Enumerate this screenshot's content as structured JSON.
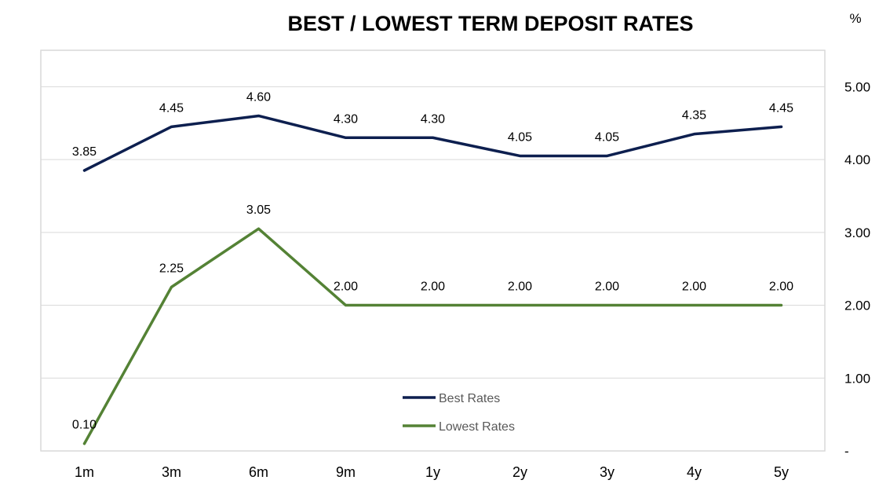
{
  "chart_data": {
    "type": "line",
    "title": "BEST / LOWEST TERM DEPOSIT RATES",
    "unit": "%",
    "categories": [
      "1m",
      "3m",
      "6m",
      "9m",
      "1y",
      "2y",
      "3y",
      "4y",
      "5y"
    ],
    "series": [
      {
        "name": "Best Rates",
        "color": "#0d1f4f",
        "values": [
          3.85,
          4.45,
          4.6,
          4.3,
          4.3,
          4.05,
          4.05,
          4.35,
          4.45
        ],
        "labels": [
          "3.85",
          "4.45",
          "4.60",
          "4.30",
          "4.30",
          "4.05",
          "4.05",
          "4.35",
          "4.45"
        ]
      },
      {
        "name": "Lowest Rates",
        "color": "#548235",
        "values": [
          0.1,
          2.25,
          3.05,
          2.0,
          2.0,
          2.0,
          2.0,
          2.0,
          2.0
        ],
        "labels": [
          "0.10",
          "2.25",
          "3.05",
          "2.00",
          "2.00",
          "2.00",
          "2.00",
          "2.00",
          "2.00"
        ]
      }
    ],
    "y_axis": {
      "side": "right",
      "ylim": [
        0,
        5.5
      ],
      "ticks": [
        0,
        1,
        2,
        3,
        4,
        5
      ],
      "tick_labels": [
        "-",
        "1.00",
        "2.00",
        "3.00",
        "4.00",
        "5.00"
      ]
    },
    "grid": true,
    "legend": "bottom-center",
    "grid_color": "#d9d9d9",
    "frame_color": "#d9d9d9"
  }
}
